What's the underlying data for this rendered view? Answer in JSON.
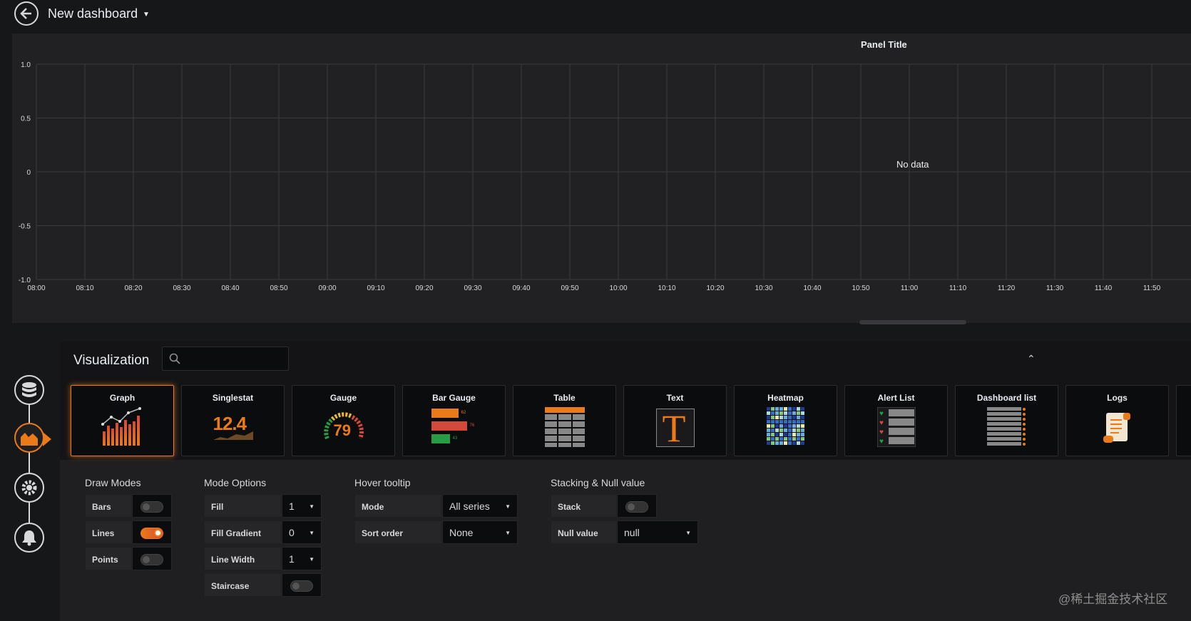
{
  "header": {
    "title": "New dashboard"
  },
  "panel": {
    "title": "Panel Title",
    "no_data": "No data"
  },
  "chart_data": {
    "type": "line",
    "title": "Panel Title",
    "y_ticks": [
      "1.0",
      "0.5",
      "0",
      "-0.5",
      "-1.0"
    ],
    "x_ticks": [
      "08:00",
      "08:10",
      "08:20",
      "08:30",
      "08:40",
      "08:50",
      "09:00",
      "09:10",
      "09:20",
      "09:30",
      "09:40",
      "09:50",
      "10:00",
      "10:10",
      "10:20",
      "10:30",
      "10:40",
      "10:50",
      "11:00",
      "11:10",
      "11:20",
      "11:30",
      "11:40",
      "11:50"
    ],
    "ylim": [
      -1.0,
      1.0
    ],
    "series": [],
    "grid": true
  },
  "visualization": {
    "label": "Visualization",
    "search_placeholder": "",
    "tiles": [
      {
        "name": "Graph",
        "icon": "graph-icon",
        "selected": true
      },
      {
        "name": "Singlestat",
        "icon": "singlestat-icon",
        "value": "12.4"
      },
      {
        "name": "Gauge",
        "icon": "gauge-icon",
        "value": "79"
      },
      {
        "name": "Bar Gauge",
        "icon": "bar-gauge-icon",
        "values": [
          "62",
          "76",
          "43"
        ]
      },
      {
        "name": "Table",
        "icon": "table-icon"
      },
      {
        "name": "Text",
        "icon": "text-icon",
        "glyph": "T"
      },
      {
        "name": "Heatmap",
        "icon": "heatmap-icon"
      },
      {
        "name": "Alert List",
        "icon": "alert-list-icon"
      },
      {
        "name": "Dashboard list",
        "icon": "dashboard-list-icon"
      },
      {
        "name": "Logs",
        "icon": "logs-icon"
      }
    ]
  },
  "draw_modes": {
    "title": "Draw Modes",
    "bars": {
      "label": "Bars",
      "on": false
    },
    "lines": {
      "label": "Lines",
      "on": true
    },
    "points": {
      "label": "Points",
      "on": false
    }
  },
  "mode_options": {
    "title": "Mode Options",
    "fill": {
      "label": "Fill",
      "value": "1"
    },
    "fill_gradient": {
      "label": "Fill Gradient",
      "value": "0"
    },
    "line_width": {
      "label": "Line Width",
      "value": "1"
    },
    "staircase": {
      "label": "Staircase",
      "on": false
    }
  },
  "hover_tooltip": {
    "title": "Hover tooltip",
    "mode": {
      "label": "Mode",
      "value": "All series"
    },
    "sort_order": {
      "label": "Sort order",
      "value": "None"
    }
  },
  "stacking": {
    "title": "Stacking & Null value",
    "stack": {
      "label": "Stack",
      "on": false
    },
    "null_value": {
      "label": "Null value",
      "value": "null"
    }
  },
  "watermark": "@稀土掘金技术社区",
  "colors": {
    "accent": "#eb7b18",
    "panel_bg": "#212124",
    "page_bg": "#161719"
  }
}
